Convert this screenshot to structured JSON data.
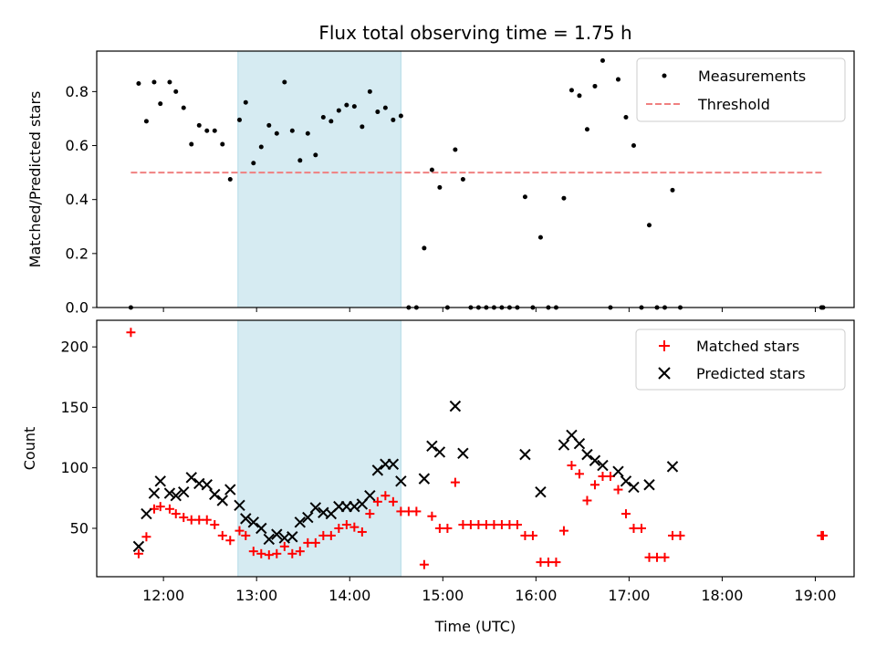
{
  "chart_data": [
    {
      "type": "scatter",
      "title": "Flux total observing time = 1.75 h",
      "xlabel": "",
      "ylabel": "Matched/Predicted stars",
      "xlim": [
        "11:17",
        "19:25"
      ],
      "ylim": [
        0,
        0.95
      ],
      "yticks": [
        0.0,
        0.2,
        0.4,
        0.6,
        0.8
      ],
      "yticklabels": [
        "0.0",
        "0.2",
        "0.4",
        "0.6",
        "0.8"
      ],
      "highlight_span": {
        "start": "12:48",
        "end": "14:33",
        "color": "#add8e6"
      },
      "legend": {
        "placement": "top-right"
      },
      "series": [
        {
          "name": "Measurements",
          "marker": "dot",
          "color": "#000000",
          "points": [
            [
              "11:39",
              0.0
            ],
            [
              "11:44",
              0.83
            ],
            [
              "11:49",
              0.69
            ],
            [
              "11:54",
              0.835
            ],
            [
              "11:58",
              0.755
            ],
            [
              "12:04",
              0.835
            ],
            [
              "12:08",
              0.8
            ],
            [
              "12:13",
              0.74
            ],
            [
              "12:18",
              0.605
            ],
            [
              "12:23",
              0.675
            ],
            [
              "12:28",
              0.655
            ],
            [
              "12:33",
              0.655
            ],
            [
              "12:38",
              0.605
            ],
            [
              "12:43",
              0.475
            ],
            [
              "12:49",
              0.695
            ],
            [
              "12:53",
              0.76
            ],
            [
              "12:58",
              0.535
            ],
            [
              "13:03",
              0.595
            ],
            [
              "13:08",
              0.675
            ],
            [
              "13:13",
              0.645
            ],
            [
              "13:18",
              0.835
            ],
            [
              "13:23",
              0.655
            ],
            [
              "13:28",
              0.545
            ],
            [
              "13:33",
              0.645
            ],
            [
              "13:38",
              0.565
            ],
            [
              "13:43",
              0.705
            ],
            [
              "13:48",
              0.69
            ],
            [
              "13:53",
              0.73
            ],
            [
              "13:58",
              0.75
            ],
            [
              "14:03",
              0.745
            ],
            [
              "14:08",
              0.67
            ],
            [
              "14:13",
              0.8
            ],
            [
              "14:18",
              0.725
            ],
            [
              "14:23",
              0.74
            ],
            [
              "14:28",
              0.695
            ],
            [
              "14:33",
              0.71
            ],
            [
              "14:38",
              0.0
            ],
            [
              "14:43",
              0.0
            ],
            [
              "14:48",
              0.22
            ],
            [
              "14:53",
              0.51
            ],
            [
              "14:58",
              0.445
            ],
            [
              "15:03",
              0.0
            ],
            [
              "15:08",
              0.585
            ],
            [
              "15:13",
              0.475
            ],
            [
              "15:18",
              0.0
            ],
            [
              "15:23",
              0.0
            ],
            [
              "15:28",
              0.0
            ],
            [
              "15:33",
              0.0
            ],
            [
              "15:38",
              0.0
            ],
            [
              "15:43",
              0.0
            ],
            [
              "15:48",
              0.0
            ],
            [
              "15:53",
              0.41
            ],
            [
              "15:58",
              0.0
            ],
            [
              "16:03",
              0.26
            ],
            [
              "16:08",
              0.0
            ],
            [
              "16:13",
              0.0
            ],
            [
              "16:18",
              0.405
            ],
            [
              "16:23",
              0.805
            ],
            [
              "16:28",
              0.785
            ],
            [
              "16:33",
              0.66
            ],
            [
              "16:38",
              0.82
            ],
            [
              "16:43",
              0.915
            ],
            [
              "16:48",
              0.0
            ],
            [
              "16:53",
              0.845
            ],
            [
              "16:58",
              0.705
            ],
            [
              "17:03",
              0.6
            ],
            [
              "17:08",
              0.0
            ],
            [
              "17:13",
              0.305
            ],
            [
              "17:18",
              0.0
            ],
            [
              "17:23",
              0.0
            ],
            [
              "17:28",
              0.435
            ],
            [
              "17:33",
              0.0
            ],
            [
              "19:04",
              0.0
            ],
            [
              "19:05",
              0.0
            ]
          ]
        },
        {
          "name": "Threshold",
          "marker": "dashed-line",
          "color": "#f08080",
          "points": [
            [
              "11:39",
              0.5
            ],
            [
              "19:05",
              0.5
            ]
          ]
        }
      ]
    },
    {
      "type": "scatter",
      "title": "",
      "xlabel": "Time (UTC)",
      "ylabel": "Count",
      "xlim": [
        "11:17",
        "19:25"
      ],
      "ylim": [
        10,
        222
      ],
      "xticks": [
        "12:00",
        "13:00",
        "14:00",
        "15:00",
        "16:00",
        "17:00",
        "18:00",
        "19:00"
      ],
      "yticks": [
        50,
        100,
        150,
        200
      ],
      "yticklabels": [
        "50",
        "100",
        "150",
        "200"
      ],
      "highlight_span": {
        "start": "12:48",
        "end": "14:33",
        "color": "#add8e6"
      },
      "legend": {
        "placement": "top-right"
      },
      "series": [
        {
          "name": "Matched stars",
          "marker": "plus",
          "color": "#ff0000",
          "points": [
            [
              "11:39",
              212
            ],
            [
              "11:44",
              29
            ],
            [
              "11:49",
              43
            ],
            [
              "11:54",
              66
            ],
            [
              "11:58",
              68
            ],
            [
              "12:04",
              66
            ],
            [
              "12:08",
              62
            ],
            [
              "12:13",
              59
            ],
            [
              "12:18",
              57
            ],
            [
              "12:23",
              57
            ],
            [
              "12:28",
              57
            ],
            [
              "12:33",
              53
            ],
            [
              "12:38",
              44
            ],
            [
              "12:43",
              40
            ],
            [
              "12:49",
              48
            ],
            [
              "12:53",
              44
            ],
            [
              "12:58",
              31
            ],
            [
              "13:03",
              29
            ],
            [
              "13:08",
              28
            ],
            [
              "13:13",
              29
            ],
            [
              "13:18",
              35
            ],
            [
              "13:23",
              29
            ],
            [
              "13:28",
              31
            ],
            [
              "13:33",
              38
            ],
            [
              "13:38",
              38
            ],
            [
              "13:43",
              44
            ],
            [
              "13:48",
              44
            ],
            [
              "13:53",
              50
            ],
            [
              "13:58",
              53
            ],
            [
              "14:03",
              51
            ],
            [
              "14:08",
              47
            ],
            [
              "14:13",
              62
            ],
            [
              "14:18",
              72
            ],
            [
              "14:23",
              77
            ],
            [
              "14:28",
              72
            ],
            [
              "14:33",
              64
            ],
            [
              "14:38",
              64
            ],
            [
              "14:43",
              64
            ],
            [
              "14:48",
              20
            ],
            [
              "14:53",
              60
            ],
            [
              "14:58",
              50
            ],
            [
              "15:03",
              50
            ],
            [
              "15:08",
              88
            ],
            [
              "15:13",
              53
            ],
            [
              "15:18",
              53
            ],
            [
              "15:23",
              53
            ],
            [
              "15:28",
              53
            ],
            [
              "15:33",
              53
            ],
            [
              "15:38",
              53
            ],
            [
              "15:43",
              53
            ],
            [
              "15:48",
              53
            ],
            [
              "15:53",
              44
            ],
            [
              "15:58",
              44
            ],
            [
              "16:03",
              22
            ],
            [
              "16:08",
              22
            ],
            [
              "16:13",
              22
            ],
            [
              "16:18",
              48
            ],
            [
              "16:23",
              102
            ],
            [
              "16:28",
              95
            ],
            [
              "16:33",
              73
            ],
            [
              "16:38",
              86
            ],
            [
              "16:43",
              93
            ],
            [
              "16:48",
              93
            ],
            [
              "16:53",
              82
            ],
            [
              "16:58",
              62
            ],
            [
              "17:03",
              50
            ],
            [
              "17:08",
              50
            ],
            [
              "17:13",
              26
            ],
            [
              "17:18",
              26
            ],
            [
              "17:23",
              26
            ],
            [
              "17:28",
              44
            ],
            [
              "17:33",
              44
            ],
            [
              "19:04",
              44
            ],
            [
              "19:05",
              44
            ]
          ]
        },
        {
          "name": "Predicted stars",
          "marker": "x",
          "color": "#000000",
          "points": [
            [
              "11:44",
              35
            ],
            [
              "11:49",
              62
            ],
            [
              "11:54",
              79
            ],
            [
              "11:58",
              89
            ],
            [
              "12:04",
              79
            ],
            [
              "12:08",
              77
            ],
            [
              "12:13",
              80
            ],
            [
              "12:18",
              92
            ],
            [
              "12:23",
              87
            ],
            [
              "12:28",
              86
            ],
            [
              "12:33",
              78
            ],
            [
              "12:38",
              73
            ],
            [
              "12:43",
              82
            ],
            [
              "12:49",
              69
            ],
            [
              "12:53",
              58
            ],
            [
              "12:58",
              55
            ],
            [
              "13:03",
              50
            ],
            [
              "13:08",
              41
            ],
            [
              "13:13",
              45
            ],
            [
              "13:18",
              42
            ],
            [
              "13:23",
              43
            ],
            [
              "13:28",
              55
            ],
            [
              "13:33",
              59
            ],
            [
              "13:38",
              67
            ],
            [
              "13:43",
              63
            ],
            [
              "13:48",
              62
            ],
            [
              "13:53",
              68
            ],
            [
              "13:58",
              68
            ],
            [
              "14:03",
              68
            ],
            [
              "14:08",
              70
            ],
            [
              "14:13",
              77
            ],
            [
              "14:18",
              98
            ],
            [
              "14:23",
              103
            ],
            [
              "14:28",
              103
            ],
            [
              "14:33",
              89
            ],
            [
              "14:48",
              91
            ],
            [
              "14:53",
              118
            ],
            [
              "14:58",
              113
            ],
            [
              "15:08",
              151
            ],
            [
              "15:13",
              112
            ],
            [
              "15:53",
              111
            ],
            [
              "16:03",
              80
            ],
            [
              "16:18",
              119
            ],
            [
              "16:23",
              127
            ],
            [
              "16:28",
              120
            ],
            [
              "16:33",
              111
            ],
            [
              "16:38",
              106
            ],
            [
              "16:43",
              102
            ],
            [
              "16:53",
              97
            ],
            [
              "16:58",
              89
            ],
            [
              "17:03",
              84
            ],
            [
              "17:13",
              86
            ],
            [
              "17:28",
              101
            ]
          ]
        }
      ]
    }
  ]
}
